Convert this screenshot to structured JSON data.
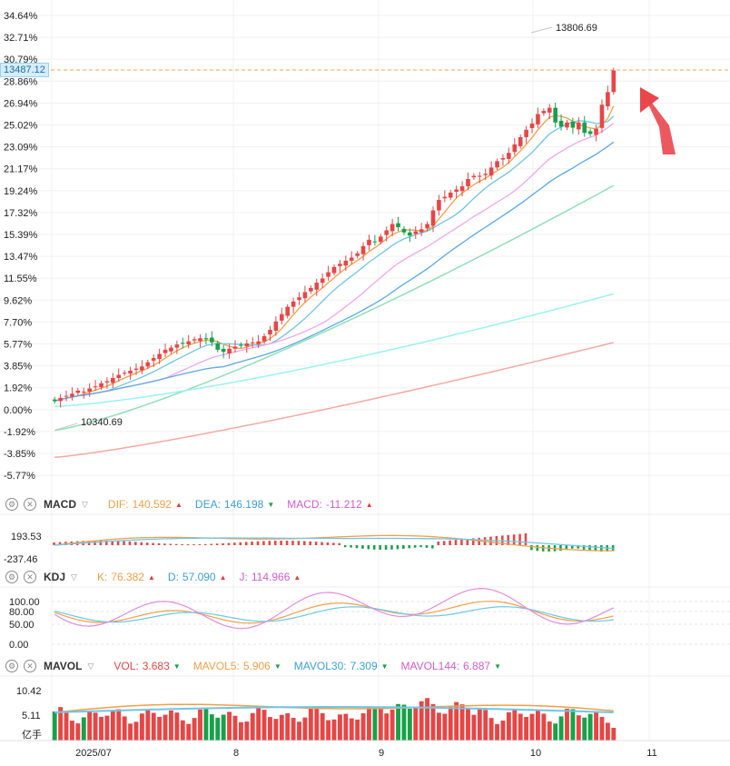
{
  "main": {
    "pct_labels": [
      "34.64%",
      "32.71%",
      "30.79%",
      "28.86%",
      "26.94%",
      "25.02%",
      "23.09%",
      "21.17%",
      "19.24%",
      "17.32%",
      "15.39%",
      "13.47%",
      "11.55%",
      "9.62%",
      "7.70%",
      "5.77%",
      "3.85%",
      "1.92%",
      "0.00%",
      "-1.92%",
      "-3.85%",
      "-5.77%"
    ],
    "current_price": "13487.12",
    "high_label": "13806.69",
    "low_label": "10340.69"
  },
  "x_axis": {
    "labels": [
      "2025/07",
      "8",
      "9",
      "10",
      "11"
    ]
  },
  "colors": {
    "up": "#e84545",
    "down": "#18a14a",
    "ma5": "#f0a048",
    "ma10": "#6ec6e6",
    "ma20": "#f1a6ee",
    "ma30": "#5aa8e6",
    "ma60": "#8fe0b8",
    "ma120": "#9af2f2",
    "ma250": "#f4a9a0",
    "dashed": "#f5a05a"
  },
  "macd": {
    "name": "MACD",
    "dif_label": "DIF:",
    "dif_value": "140.592",
    "dea_label": "DEA:",
    "dea_value": "146.198",
    "macd_label": "MACD:",
    "macd_value": "-11.212",
    "ticks": [
      "193.53",
      "-237.46"
    ]
  },
  "kdj": {
    "name": "KDJ",
    "k_label": "K:",
    "k_value": "76.382",
    "d_label": "D:",
    "d_value": "57.090",
    "j_label": "J:",
    "j_value": "114.966",
    "ticks": [
      "100.00",
      "80.00",
      "50.00",
      "0.00"
    ]
  },
  "mavol": {
    "name": "MAVOL",
    "vol_label": "VOL:",
    "vol_value": "3.683",
    "ma5_label": "MAVOL5:",
    "ma5_value": "5.906",
    "ma30_label": "MAVOL30:",
    "ma30_value": "7.309",
    "ma144_label": "MAVOL144:",
    "ma144_value": "6.887",
    "ticks": [
      "10.42",
      "5.11",
      "亿手"
    ]
  },
  "chart_data": {
    "type": "candlestick",
    "title": "",
    "ylabel": "%",
    "base_price": 10340.69,
    "ylim_pct": [
      -6.7,
      35.5
    ],
    "closes": [
      10330,
      10360,
      10380,
      10400,
      10430,
      10420,
      10450,
      10470,
      10500,
      10520,
      10550,
      10580,
      10600,
      10620,
      10640,
      10660,
      10700,
      10740,
      10780,
      10820,
      10840,
      10870,
      10880,
      10900,
      10920,
      10930,
      10920,
      10890,
      10820,
      10800,
      10830,
      10850,
      10860,
      10880,
      10890,
      10900,
      10950,
      11010,
      11090,
      11160,
      11230,
      11280,
      11320,
      11370,
      11410,
      11460,
      11500,
      11560,
      11610,
      11640,
      11670,
      11700,
      11740,
      11810,
      11870,
      11850,
      11900,
      11960,
      12020,
      11990,
      11940,
      11910,
      11950,
      11970,
      12020,
      12150,
      12250,
      12280,
      12320,
      12350,
      12380,
      12450,
      12480,
      12480,
      12500,
      12560,
      12620,
      12650,
      12700,
      12780,
      12850,
      12920,
      12980,
      13070,
      13100,
      13130,
      12990,
      12950,
      12990,
      12940,
      12990,
      12890,
      12880,
      12930,
      13160,
      13280,
      13487
    ],
    "dates_markers": [
      "2025/07",
      "8",
      "9",
      "10",
      "11"
    ]
  }
}
